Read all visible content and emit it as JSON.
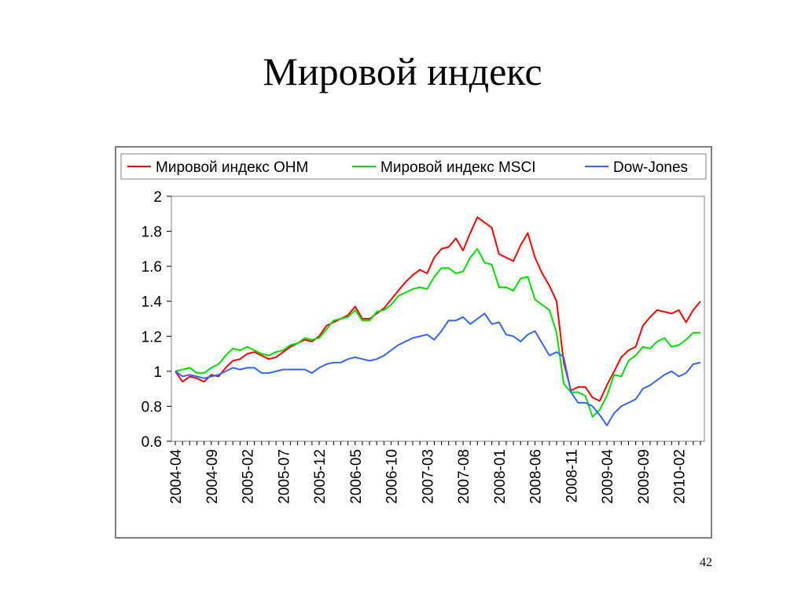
{
  "slide": {
    "title": "Мировой индекс",
    "page_number": "42"
  },
  "chart_data": {
    "type": "line",
    "title": "",
    "xlabel": "",
    "ylabel": "",
    "ylim": [
      0.6,
      2
    ],
    "yticks": [
      "0.6",
      "0.8",
      "1",
      "1.2",
      "1.4",
      "1.6",
      "1.8",
      "2"
    ],
    "grid": false,
    "legend_position": "top",
    "x_tick_labels": [
      "2004-04",
      "2004-09",
      "2005-02",
      "2005-07",
      "2005-12",
      "2006-05",
      "2006-10",
      "2007-03",
      "2007-08",
      "2008-01",
      "2008-06",
      "2008-11",
      "2009-04",
      "2009-09",
      "2010-02"
    ],
    "x": [
      "2004-04",
      "2004-05",
      "2004-06",
      "2004-07",
      "2004-08",
      "2004-09",
      "2004-10",
      "2004-11",
      "2004-12",
      "2005-01",
      "2005-02",
      "2005-03",
      "2005-04",
      "2005-05",
      "2005-06",
      "2005-07",
      "2005-08",
      "2005-09",
      "2005-10",
      "2005-11",
      "2005-12",
      "2006-01",
      "2006-02",
      "2006-03",
      "2006-04",
      "2006-05",
      "2006-06",
      "2006-07",
      "2006-08",
      "2006-09",
      "2006-10",
      "2006-11",
      "2006-12",
      "2007-01",
      "2007-02",
      "2007-03",
      "2007-04",
      "2007-05",
      "2007-06",
      "2007-07",
      "2007-08",
      "2007-09",
      "2007-10",
      "2007-11",
      "2007-12",
      "2008-01",
      "2008-02",
      "2008-03",
      "2008-04",
      "2008-05",
      "2008-06",
      "2008-07",
      "2008-08",
      "2008-09",
      "2008-10",
      "2008-11",
      "2008-12",
      "2009-01",
      "2009-02",
      "2009-03",
      "2009-04",
      "2009-05",
      "2009-06",
      "2009-07",
      "2009-08",
      "2009-09",
      "2009-10",
      "2009-11",
      "2009-12",
      "2010-01",
      "2010-02",
      "2010-03",
      "2010-04",
      "2010-05"
    ],
    "series": [
      {
        "name": "Мировой индекс ОНМ",
        "color": "#ff0000",
        "values": [
          1.0,
          0.94,
          0.97,
          0.96,
          0.94,
          0.98,
          0.97,
          1.02,
          1.06,
          1.07,
          1.1,
          1.11,
          1.09,
          1.07,
          1.08,
          1.11,
          1.14,
          1.16,
          1.18,
          1.17,
          1.2,
          1.26,
          1.28,
          1.3,
          1.32,
          1.37,
          1.3,
          1.3,
          1.33,
          1.36,
          1.41,
          1.46,
          1.51,
          1.55,
          1.58,
          1.56,
          1.65,
          1.7,
          1.71,
          1.76,
          1.69,
          1.79,
          1.88,
          1.85,
          1.82,
          1.67,
          1.65,
          1.63,
          1.72,
          1.79,
          1.65,
          1.56,
          1.49,
          1.4,
          1.05,
          0.89,
          0.91,
          0.91,
          0.85,
          0.83,
          0.92,
          1.0,
          1.08,
          1.12,
          1.14,
          1.26,
          1.31,
          1.35,
          1.34,
          1.33,
          1.35,
          1.28,
          1.35,
          1.4
        ]
      },
      {
        "name": "Мировой индекс MSCI",
        "color": "#00e000",
        "values": [
          1.0,
          1.01,
          1.02,
          0.99,
          0.99,
          1.02,
          1.04,
          1.09,
          1.13,
          1.12,
          1.14,
          1.12,
          1.1,
          1.09,
          1.11,
          1.12,
          1.15,
          1.16,
          1.19,
          1.18,
          1.19,
          1.24,
          1.29,
          1.3,
          1.31,
          1.35,
          1.29,
          1.29,
          1.34,
          1.35,
          1.38,
          1.43,
          1.45,
          1.47,
          1.48,
          1.47,
          1.54,
          1.59,
          1.59,
          1.56,
          1.57,
          1.65,
          1.7,
          1.62,
          1.61,
          1.48,
          1.48,
          1.46,
          1.53,
          1.54,
          1.41,
          1.38,
          1.35,
          1.22,
          0.93,
          0.88,
          0.88,
          0.86,
          0.74,
          0.78,
          0.86,
          0.98,
          0.97,
          1.06,
          1.09,
          1.14,
          1.13,
          1.17,
          1.19,
          1.14,
          1.15,
          1.18,
          1.22,
          1.22
        ]
      },
      {
        "name": "Dow-Jones",
        "color": "#3366ff",
        "values": [
          1.0,
          0.97,
          0.98,
          0.97,
          0.96,
          0.97,
          0.98,
          1.0,
          1.02,
          1.01,
          1.02,
          1.02,
          0.99,
          0.99,
          1.0,
          1.01,
          1.01,
          1.01,
          1.01,
          0.99,
          1.02,
          1.04,
          1.05,
          1.05,
          1.07,
          1.08,
          1.07,
          1.06,
          1.07,
          1.09,
          1.12,
          1.15,
          1.17,
          1.19,
          1.2,
          1.21,
          1.18,
          1.23,
          1.29,
          1.29,
          1.31,
          1.27,
          1.3,
          1.33,
          1.27,
          1.28,
          1.21,
          1.2,
          1.17,
          1.21,
          1.23,
          1.16,
          1.09,
          1.11,
          1.08,
          0.88,
          0.82,
          0.82,
          0.8,
          0.75,
          0.69,
          0.76,
          0.8,
          0.82,
          0.84,
          0.9,
          0.92,
          0.95,
          0.98,
          1.0,
          0.97,
          0.99,
          1.04,
          1.05
        ]
      }
    ]
  }
}
